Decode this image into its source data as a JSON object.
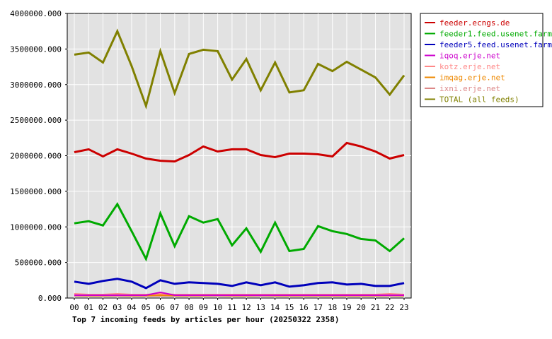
{
  "chart_data": {
    "type": "line",
    "title": "Top 7 incoming feeds by articles per hour (20250322 2358)",
    "x": [
      "00",
      "01",
      "02",
      "03",
      "04",
      "05",
      "06",
      "07",
      "08",
      "09",
      "10",
      "11",
      "12",
      "13",
      "14",
      "15",
      "16",
      "17",
      "18",
      "19",
      "20",
      "21",
      "22",
      "23"
    ],
    "ylim": [
      0,
      4000000
    ],
    "yticks": [
      0,
      500000,
      1000000,
      1500000,
      2000000,
      2500000,
      3000000,
      3500000,
      4000000
    ],
    "ytick_labels": [
      "0.000",
      "500000.000",
      "1000000.000",
      "1500000.000",
      "2000000.000",
      "2500000.000",
      "3000000.000",
      "3500000.000",
      "4000000.000"
    ],
    "grid": true,
    "legend_position": "top-right-outside",
    "series": [
      {
        "name": "feeder.ecngs.de",
        "color": "#cc0000",
        "values": [
          2050000,
          2090000,
          1990000,
          2090000,
          2030000,
          1960000,
          1930000,
          1920000,
          2010000,
          2130000,
          2060000,
          2090000,
          2090000,
          2010000,
          1980000,
          2030000,
          2030000,
          2020000,
          1990000,
          2180000,
          2130000,
          2060000,
          1960000,
          2010000
        ]
      },
      {
        "name": "feeder1.feed.usenet.farm",
        "color": "#00aa00",
        "values": [
          1050000,
          1080000,
          1020000,
          1320000,
          940000,
          550000,
          1190000,
          730000,
          1150000,
          1060000,
          1110000,
          740000,
          980000,
          650000,
          1060000,
          660000,
          690000,
          1010000,
          940000,
          900000,
          830000,
          810000,
          660000,
          840000
        ]
      },
      {
        "name": "feeder5.feed.usenet.farm",
        "color": "#0000bb",
        "values": [
          230000,
          200000,
          240000,
          270000,
          230000,
          140000,
          250000,
          200000,
          220000,
          210000,
          200000,
          170000,
          220000,
          180000,
          220000,
          160000,
          180000,
          210000,
          220000,
          190000,
          200000,
          170000,
          170000,
          210000
        ]
      },
      {
        "name": "iqoq.erje.net",
        "color": "#cc00cc",
        "values": [
          40000,
          40000,
          40000,
          40000,
          40000,
          40000,
          80000,
          40000,
          40000,
          40000,
          40000,
          40000,
          40000,
          40000,
          40000,
          40000,
          40000,
          40000,
          40000,
          40000,
          40000,
          40000,
          40000,
          40000
        ]
      },
      {
        "name": "kotz.erje.net",
        "color": "#ff8888",
        "values": [
          60000,
          50000,
          50000,
          60000,
          50000,
          50000,
          60000,
          50000,
          50000,
          50000,
          50000,
          50000,
          50000,
          50000,
          50000,
          50000,
          50000,
          50000,
          50000,
          50000,
          50000,
          50000,
          60000,
          50000
        ]
      },
      {
        "name": "imqag.erje.net",
        "color": "#ee8800",
        "values": [
          40000,
          35000,
          35000,
          40000,
          35000,
          35000,
          40000,
          35000,
          35000,
          35000,
          40000,
          35000,
          35000,
          40000,
          35000,
          35000,
          35000,
          35000,
          35000,
          35000,
          35000,
          35000,
          40000,
          35000
        ]
      },
      {
        "name": "ixni.erje.net",
        "color": "#dd8888",
        "values": [
          30000,
          30000,
          30000,
          30000,
          30000,
          30000,
          30000,
          30000,
          30000,
          30000,
          30000,
          30000,
          30000,
          30000,
          30000,
          30000,
          30000,
          30000,
          30000,
          30000,
          30000,
          30000,
          30000,
          30000
        ]
      },
      {
        "name": "TOTAL (all feeds)",
        "color": "#808000",
        "values": [
          3420000,
          3450000,
          3310000,
          3750000,
          3260000,
          2700000,
          3470000,
          2880000,
          3430000,
          3490000,
          3470000,
          3070000,
          3360000,
          2920000,
          3310000,
          2890000,
          2920000,
          3290000,
          3190000,
          3320000,
          3210000,
          3100000,
          2860000,
          3130000
        ]
      }
    ]
  }
}
